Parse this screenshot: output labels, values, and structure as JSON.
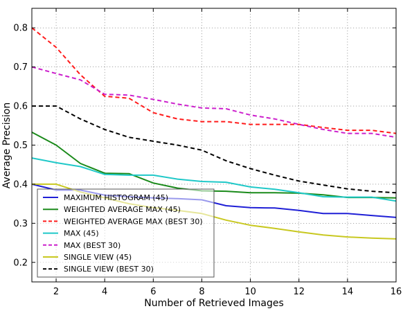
{
  "chart_data": {
    "type": "line",
    "xlabel": "Number of Retrieved Images",
    "ylabel": "Average Precision",
    "xlim": [
      1,
      16
    ],
    "ylim": [
      0.15,
      0.85
    ],
    "xticks": [
      2,
      4,
      6,
      8,
      10,
      12,
      14,
      16
    ],
    "yticks": [
      0.2,
      0.3,
      0.4,
      0.5,
      0.6,
      0.7,
      0.8
    ],
    "grid": true,
    "legend_position": "lower-left",
    "x": [
      1,
      2,
      3,
      4,
      5,
      6,
      7,
      8,
      9,
      10,
      11,
      12,
      13,
      14,
      15,
      16
    ],
    "series": [
      {
        "name": "MAXIMUM HISTOGRAM (45)",
        "color": "#1f1fd6",
        "dash": "solid",
        "values": [
          0.4,
          0.385,
          0.385,
          0.372,
          0.368,
          0.365,
          0.363,
          0.36,
          0.345,
          0.34,
          0.339,
          0.333,
          0.325,
          0.325,
          0.32,
          0.315
        ]
      },
      {
        "name": "WEIGHTED AVERAGE MAX (45)",
        "color": "#1a8a1a",
        "dash": "solid",
        "values": [
          0.533,
          0.5,
          0.453,
          0.428,
          0.427,
          0.403,
          0.39,
          0.383,
          0.382,
          0.378,
          0.378,
          0.377,
          0.373,
          0.366,
          0.366,
          0.365
        ]
      },
      {
        "name": "WEIGHTED AVERAGE MAX (BEST 30)",
        "color": "#ff1a1a",
        "dash": "dashed",
        "values": [
          0.8,
          0.75,
          0.68,
          0.625,
          0.62,
          0.583,
          0.567,
          0.56,
          0.56,
          0.553,
          0.553,
          0.553,
          0.545,
          0.538,
          0.538,
          0.53
        ]
      },
      {
        "name": "MAX (45)",
        "color": "#1fc8c8",
        "dash": "solid",
        "values": [
          0.467,
          0.455,
          0.445,
          0.425,
          0.423,
          0.423,
          0.413,
          0.407,
          0.405,
          0.393,
          0.387,
          0.378,
          0.368,
          0.367,
          0.367,
          0.357
        ]
      },
      {
        "name": "MAX (BEST 30)",
        "color": "#cc1fcc",
        "dash": "dashed",
        "values": [
          0.7,
          0.683,
          0.667,
          0.63,
          0.628,
          0.617,
          0.605,
          0.595,
          0.593,
          0.577,
          0.567,
          0.553,
          0.54,
          0.53,
          0.53,
          0.52
        ]
      },
      {
        "name": "SINGLE VIEW (45)",
        "color": "#c8c820",
        "dash": "solid",
        "values": [
          0.4,
          0.4,
          0.38,
          0.365,
          0.35,
          0.34,
          0.333,
          0.325,
          0.308,
          0.295,
          0.287,
          0.278,
          0.27,
          0.265,
          0.262,
          0.26
        ]
      },
      {
        "name": "SINGLE VIEW (BEST 30)",
        "color": "#000000",
        "dash": "dashed",
        "values": [
          0.6,
          0.6,
          0.567,
          0.54,
          0.52,
          0.51,
          0.5,
          0.487,
          0.46,
          0.44,
          0.423,
          0.408,
          0.398,
          0.388,
          0.382,
          0.378
        ]
      }
    ]
  }
}
